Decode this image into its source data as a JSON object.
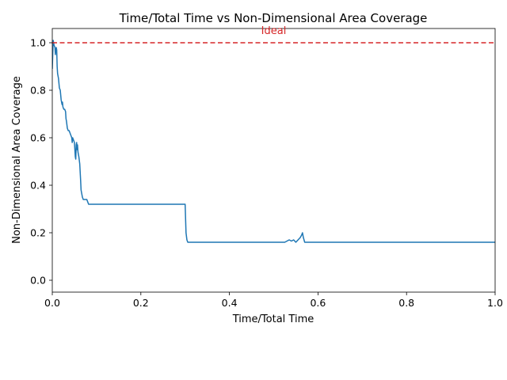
{
  "chart_data": {
    "type": "line",
    "title": "Time/Total Time vs Non-Dimensional Area Coverage",
    "xlabel": "Time/Total Time",
    "ylabel": "Non-Dimensional Area Coverage",
    "xlim": [
      0,
      1
    ],
    "ylim": [
      -0.05,
      1.06
    ],
    "xticks": [
      "0.0",
      "0.2",
      "0.4",
      "0.6",
      "0.8",
      "1.0"
    ],
    "yticks": [
      "0.0",
      "0.2",
      "0.4",
      "0.6",
      "0.8",
      "1.0"
    ],
    "grid": false,
    "reference_line": {
      "y": 1.0,
      "label": "Ideal",
      "color": "#d62728",
      "style": "dashed"
    },
    "series": [
      {
        "color": "#1f77b4",
        "x": [
          0,
          0.002,
          0.004,
          0.006,
          0.007,
          0.008,
          0.009,
          0.01,
          0.011,
          0.012,
          0.014,
          0.016,
          0.018,
          0.02,
          0.022,
          0.023,
          0.024,
          0.026,
          0.028,
          0.03,
          0.031,
          0.032,
          0.034,
          0.036,
          0.038,
          0.04,
          0.042,
          0.044,
          0.045,
          0.046,
          0.048,
          0.05,
          0.052,
          0.053,
          0.054,
          0.055,
          0.056,
          0.057,
          0.058,
          0.06,
          0.062,
          0.064,
          0.065,
          0.066,
          0.068,
          0.07,
          0.072,
          0.074,
          0.076,
          0.078,
          0.08,
          0.082,
          0.084,
          0.1,
          0.2,
          0.3,
          0.302,
          0.304,
          0.306,
          0.31,
          0.4,
          0.5,
          0.525,
          0.53,
          0.535,
          0.54,
          0.545,
          0.55,
          0.555,
          0.56,
          0.563,
          0.565,
          0.567,
          0.57,
          0.6,
          0.7,
          0.8,
          0.9,
          1.0
        ],
        "y": [
          0.89,
          1.01,
          0.99,
          0.98,
          0.95,
          0.97,
          0.98,
          0.97,
          0.9,
          0.87,
          0.85,
          0.81,
          0.8,
          0.76,
          0.74,
          0.75,
          0.73,
          0.72,
          0.72,
          0.71,
          0.68,
          0.67,
          0.64,
          0.63,
          0.63,
          0.62,
          0.61,
          0.6,
          0.58,
          0.6,
          0.59,
          0.58,
          0.52,
          0.51,
          0.57,
          0.58,
          0.55,
          0.57,
          0.54,
          0.52,
          0.49,
          0.42,
          0.38,
          0.37,
          0.35,
          0.34,
          0.34,
          0.34,
          0.34,
          0.34,
          0.33,
          0.32,
          0.32,
          0.32,
          0.32,
          0.32,
          0.2,
          0.17,
          0.16,
          0.16,
          0.16,
          0.16,
          0.16,
          0.165,
          0.17,
          0.165,
          0.17,
          0.16,
          0.17,
          0.18,
          0.19,
          0.2,
          0.18,
          0.16,
          0.16,
          0.16,
          0.16,
          0.16,
          0.16
        ]
      }
    ]
  }
}
